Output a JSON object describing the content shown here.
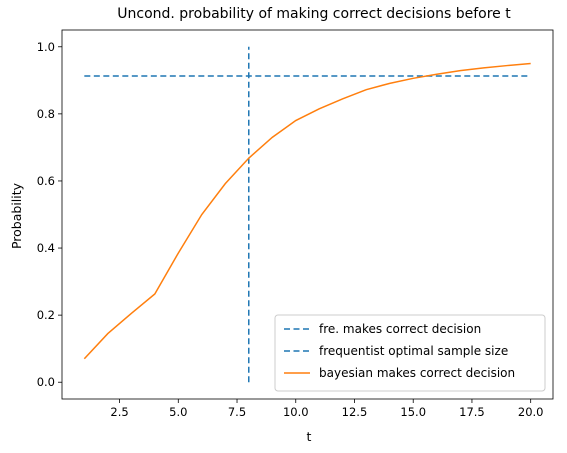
{
  "chart_data": {
    "type": "line",
    "title": "Uncond. probability of making correct decisions before t",
    "xlabel": "t",
    "ylabel": "Probability",
    "xlim": [
      0.05,
      20.95
    ],
    "ylim": [
      -0.05,
      1.05
    ],
    "xticks": [
      2.5,
      5.0,
      7.5,
      10.0,
      12.5,
      15.0,
      17.5,
      20.0
    ],
    "xtick_labels": [
      "2.5",
      "5.0",
      "7.5",
      "10.0",
      "12.5",
      "15.0",
      "17.5",
      "20.0"
    ],
    "yticks": [
      0.0,
      0.2,
      0.4,
      0.6,
      0.8,
      1.0
    ],
    "ytick_labels": [
      "0.0",
      "0.2",
      "0.4",
      "0.6",
      "0.8",
      "1.0"
    ],
    "grid": false,
    "legend_position": "lower-right",
    "series": [
      {
        "name": "fre. makes correct decision",
        "kind": "hline",
        "style": "dashed",
        "color": "#1f77b4",
        "y": 0.913,
        "x_range": [
          1,
          20
        ]
      },
      {
        "name": "frequentist optimal sample size",
        "kind": "vline",
        "style": "dashed",
        "color": "#1f77b4",
        "x": 8,
        "y_range": [
          0,
          1
        ]
      },
      {
        "name": "bayesian makes correct decision",
        "kind": "line",
        "style": "solid",
        "color": "#ff7f0e",
        "x": [
          1,
          2,
          3,
          4,
          5,
          6,
          7,
          8,
          9,
          10,
          11,
          12,
          13,
          14,
          15,
          16,
          17,
          18,
          19,
          20
        ],
        "y": [
          0.07,
          0.145,
          0.205,
          0.263,
          0.385,
          0.5,
          0.592,
          0.668,
          0.73,
          0.78,
          0.815,
          0.845,
          0.872,
          0.891,
          0.906,
          0.918,
          0.929,
          0.937,
          0.944,
          0.95
        ]
      }
    ]
  }
}
